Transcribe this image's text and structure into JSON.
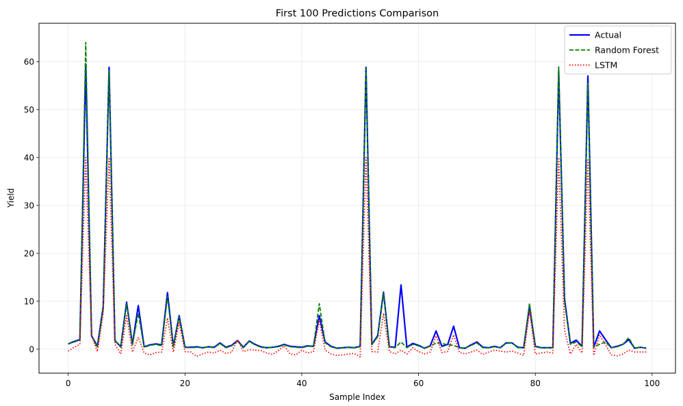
{
  "chart_data": {
    "type": "line",
    "title": "First 100 Predictions Comparison",
    "xlabel": "Sample Index",
    "ylabel": "Yield",
    "xlim": [
      -5,
      104
    ],
    "ylim": [
      -5,
      68
    ],
    "xticks": [
      0,
      20,
      40,
      60,
      80,
      100
    ],
    "yticks": [
      0,
      10,
      20,
      30,
      40,
      50,
      60
    ],
    "grid": true,
    "legend_position": "upper right",
    "series": [
      {
        "name": "Actual",
        "color": "#0000ff",
        "style": "solid",
        "values": [
          1.1,
          1.6,
          2.0,
          59.5,
          2.8,
          0.6,
          8.9,
          58.8,
          1.8,
          0.5,
          9.8,
          1.0,
          9.1,
          0.5,
          0.9,
          1.1,
          0.9,
          11.8,
          0.6,
          7.0,
          0.4,
          0.4,
          0.5,
          0.3,
          0.5,
          0.4,
          1.3,
          0.4,
          0.8,
          1.8,
          0.4,
          1.7,
          1.0,
          0.5,
          0.3,
          0.4,
          0.6,
          1.0,
          0.6,
          0.5,
          0.4,
          0.7,
          0.6,
          7.0,
          1.5,
          0.6,
          0.2,
          0.3,
          0.4,
          0.3,
          0.6,
          58.8,
          1.0,
          2.8,
          11.9,
          0.5,
          0.4,
          13.4,
          0.4,
          1.2,
          0.8,
          0.2,
          0.7,
          3.8,
          0.6,
          1.0,
          4.8,
          0.3,
          0.2,
          0.9,
          1.5,
          0.4,
          0.3,
          0.6,
          0.3,
          1.3,
          1.3,
          0.4,
          0.3,
          8.9,
          0.6,
          0.3,
          0.3,
          0.3,
          58.0,
          10.5,
          1.2,
          1.9,
          0.6,
          57.0,
          0.4,
          3.8,
          2.0,
          0.3,
          0.6,
          1.0,
          2.0,
          0.2,
          0.4,
          0.2
        ]
      },
      {
        "name": "Random Forest",
        "color": "#008000",
        "style": "dashed",
        "values": [
          1.1,
          1.5,
          1.9,
          64.0,
          2.9,
          0.3,
          8.5,
          58.1,
          1.9,
          0.4,
          9.5,
          0.9,
          7.5,
          0.4,
          0.8,
          1.0,
          0.7,
          11.0,
          0.5,
          6.8,
          0.4,
          0.3,
          0.4,
          0.3,
          0.5,
          0.3,
          1.2,
          0.3,
          0.7,
          1.7,
          0.3,
          1.6,
          0.9,
          0.4,
          0.3,
          0.4,
          0.5,
          0.9,
          0.5,
          0.4,
          0.3,
          0.6,
          0.6,
          9.5,
          1.3,
          0.5,
          0.2,
          0.3,
          0.4,
          0.3,
          0.5,
          58.6,
          0.9,
          2.6,
          11.7,
          0.5,
          0.3,
          1.5,
          0.3,
          1.0,
          0.7,
          0.2,
          0.6,
          1.3,
          1.2,
          0.9,
          0.8,
          0.3,
          0.2,
          0.8,
          1.3,
          0.3,
          0.3,
          0.5,
          0.3,
          1.2,
          1.3,
          0.3,
          0.3,
          9.6,
          0.5,
          0.3,
          0.3,
          0.3,
          59.0,
          10.0,
          1.0,
          1.5,
          0.5,
          55.5,
          0.5,
          1.0,
          1.5,
          0.3,
          0.5,
          1.0,
          2.4,
          0.2,
          0.4,
          0.2
        ]
      },
      {
        "name": "LSTM",
        "color": "#ff0000",
        "style": "dotted",
        "values": [
          -0.4,
          0.4,
          1.0,
          40.0,
          2.8,
          -0.5,
          7.5,
          40.0,
          1.0,
          -1.0,
          7.0,
          -0.6,
          2.5,
          -0.8,
          -1.2,
          -0.7,
          -0.6,
          6.5,
          -0.6,
          5.5,
          -0.5,
          -0.6,
          -1.5,
          -1.0,
          -0.6,
          -0.8,
          -0.2,
          -0.9,
          -0.6,
          2.0,
          -0.5,
          -0.1,
          -0.2,
          -0.3,
          -0.8,
          -1.1,
          -0.3,
          0.7,
          -1.0,
          -1.2,
          -0.2,
          -0.8,
          -0.5,
          6.0,
          -0.2,
          -1.0,
          -1.3,
          -1.2,
          -1.0,
          -0.9,
          -1.6,
          40.0,
          -0.5,
          -0.6,
          7.5,
          -0.5,
          -1.0,
          -0.2,
          -1.0,
          0.3,
          -0.5,
          -1.0,
          -0.6,
          2.8,
          -0.7,
          -0.5,
          3.0,
          -0.7,
          -1.0,
          -0.6,
          -0.2,
          -1.1,
          -0.6,
          -0.2,
          -0.4,
          -0.6,
          -0.4,
          -0.8,
          -1.3,
          8.0,
          -1.0,
          -0.8,
          -0.6,
          -0.8,
          40.0,
          4.0,
          -1.0,
          1.0,
          -0.8,
          39.5,
          -1.3,
          3.0,
          1.0,
          -1.2,
          -1.4,
          -1.0,
          -0.2,
          -0.6,
          -0.6,
          -0.6
        ]
      }
    ]
  }
}
